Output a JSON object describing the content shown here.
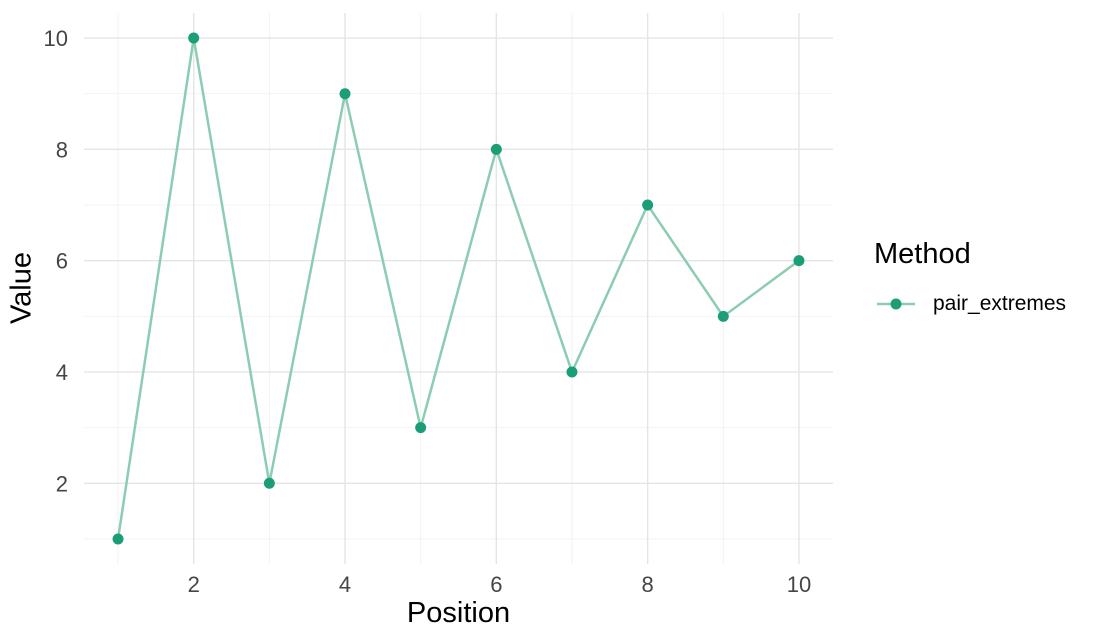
{
  "chart_data": {
    "type": "line",
    "title": "",
    "xlabel": "Position",
    "ylabel": "Value",
    "x": [
      1,
      2,
      3,
      4,
      5,
      6,
      7,
      8,
      9,
      10
    ],
    "series": [
      {
        "name": "pair_extremes",
        "values": [
          1,
          10,
          2,
          9,
          3,
          8,
          4,
          7,
          5,
          6
        ]
      }
    ],
    "x_ticks": [
      2,
      4,
      6,
      8,
      10
    ],
    "y_ticks": [
      2,
      4,
      6,
      8,
      10
    ],
    "xlim": [
      0.55,
      10.45
    ],
    "ylim": [
      0.55,
      10.45
    ],
    "grid": "major+minor",
    "legend": {
      "title": "Method",
      "position": "right"
    },
    "colors": {
      "point": "#1b9e77",
      "line": "#8ccdb2",
      "grid_major": "#e5e5e5",
      "grid_minor": "#f1f1f1",
      "tick_label": "#454545",
      "axis_title": "#000000",
      "background": "#ffffff"
    }
  }
}
